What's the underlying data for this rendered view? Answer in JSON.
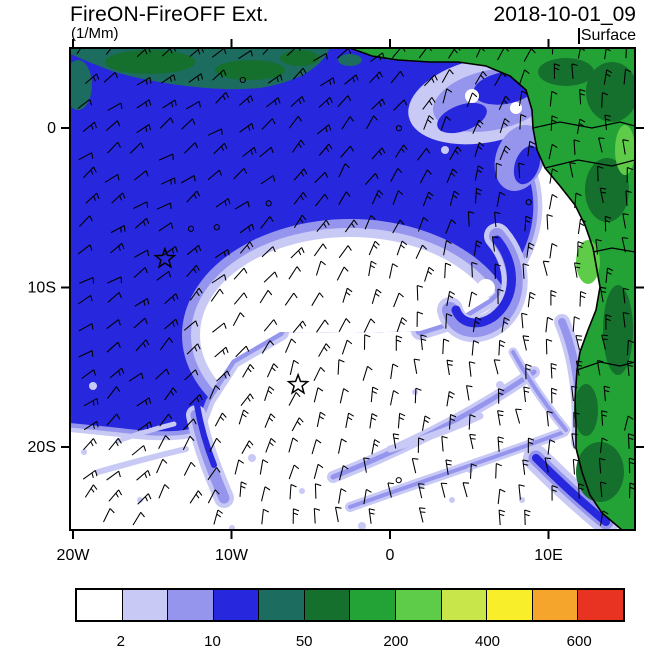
{
  "header": {
    "title": "FireON-FireOFF Ext.",
    "timestamp": "2018-10-01_09",
    "units": "(1/Mm)",
    "level": "Surface"
  },
  "chart_data": {
    "type": "heatmap",
    "title": "FireON-FireOFF Ext.",
    "timestamp": "2018-10-01_09",
    "units_label": "(1/Mm)",
    "level_label": "Surface",
    "x_axis": {
      "ticks": [
        {
          "label": "20W",
          "lon": -20
        },
        {
          "label": "10W",
          "lon": -10
        },
        {
          "label": "0",
          "lon": 0
        },
        {
          "label": "10E",
          "lon": 10
        }
      ]
    },
    "y_axis": {
      "ticks": [
        {
          "label": "0",
          "lat": 0
        },
        {
          "label": "10S",
          "lat": -10
        },
        {
          "label": "20S",
          "lat": -20
        }
      ]
    },
    "colorbar": {
      "colors": [
        "#ffffff",
        "#c9c9f6",
        "#9595ee",
        "#2727dd",
        "#1d6c60",
        "#14702c",
        "#23a336",
        "#5ecb49",
        "#c8e64a",
        "#f8ef2a",
        "#f5a52b",
        "#e83323"
      ],
      "tick_labels": [
        "2",
        "10",
        "50",
        "200",
        "400",
        "600"
      ],
      "tick_boundary_indices": [
        1,
        3,
        5,
        7,
        9,
        11
      ]
    },
    "markers": [
      {
        "type": "star",
        "lon": -14.2,
        "lat": -8.2
      },
      {
        "type": "star",
        "lon": -5.8,
        "lat": -16.1
      }
    ],
    "overlays": [
      "wind-barbs",
      "coastline",
      "country-borders"
    ]
  }
}
